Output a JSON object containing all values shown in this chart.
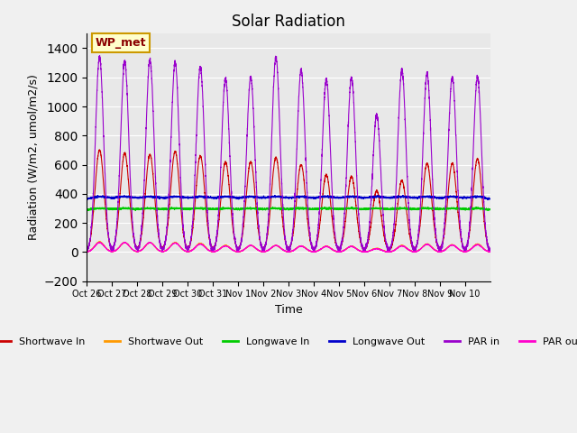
{
  "title": "Solar Radiation",
  "xlabel": "Time",
  "ylabel": "Radiation (W/m2, umol/m2/s)",
  "ylim": [
    -200,
    1500
  ],
  "yticks": [
    -200,
    0,
    200,
    400,
    600,
    800,
    1000,
    1200,
    1400
  ],
  "bg_color": "#e8e8e8",
  "annotation": "WP_met",
  "legend": [
    {
      "label": "Shortwave In",
      "color": "#cc0000"
    },
    {
      "label": "Shortwave Out",
      "color": "#ff9900"
    },
    {
      "label": "Longwave In",
      "color": "#00cc00"
    },
    {
      "label": "Longwave Out",
      "color": "#0000cc"
    },
    {
      "label": "PAR in",
      "color": "#9900cc"
    },
    {
      "label": "PAR out",
      "color": "#ff00cc"
    }
  ],
  "xtick_labels": [
    "Oct 26",
    "Oct 27",
    "Oct 28",
    "Oct 29",
    "Oct 30",
    "Oct 31",
    "Nov 1",
    "Nov 2",
    "Nov 3",
    "Nov 4",
    "Nov 5",
    "Nov 6",
    "Nov 7",
    "Nov 8",
    "Nov 9",
    "Nov 10"
  ],
  "shortwave_in_peaks": [
    700,
    680,
    670,
    690,
    660,
    620,
    620,
    650,
    600,
    530,
    520,
    420,
    490,
    610,
    610,
    640
  ],
  "shortwave_out_peaks": [
    70,
    65,
    65,
    65,
    60,
    45,
    45,
    45,
    42,
    40,
    40,
    25,
    45,
    55,
    50,
    55
  ],
  "longwave_in_base": 285,
  "longwave_out_base": 355,
  "par_in_peaks": [
    1340,
    1310,
    1320,
    1300,
    1270,
    1190,
    1200,
    1340,
    1250,
    1185,
    1200,
    940,
    1250,
    1230,
    1200,
    1200
  ],
  "par_out_peaks": [
    65,
    65,
    65,
    62,
    55,
    42,
    45,
    45,
    40,
    38,
    38,
    22,
    42,
    52,
    48,
    50
  ],
  "num_days": 16,
  "points_per_day": 288
}
